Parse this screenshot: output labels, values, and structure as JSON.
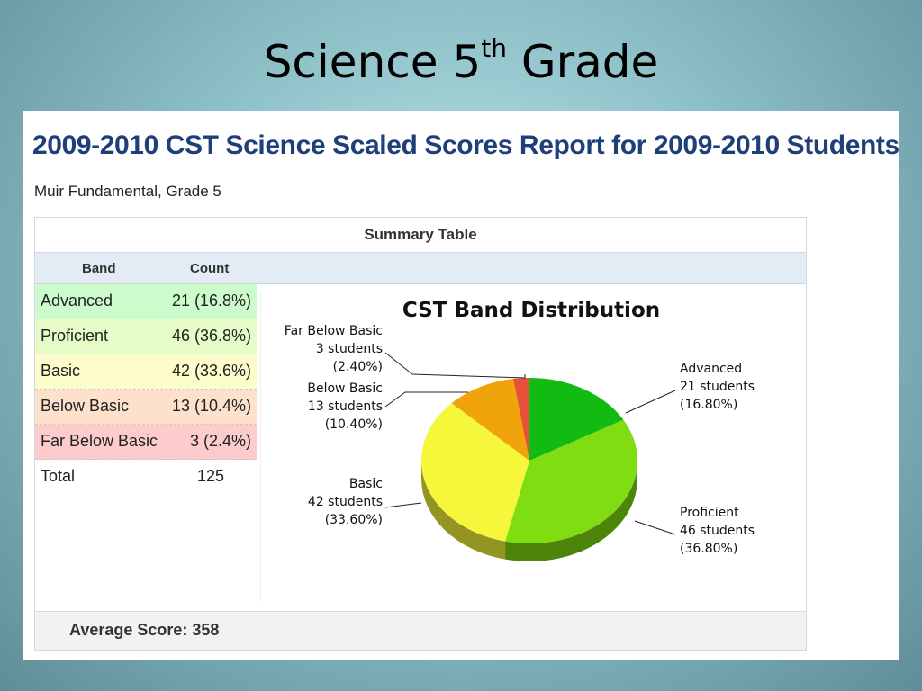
{
  "slide": {
    "title_main": "Science 5",
    "title_sup": "th",
    "title_end": " Grade"
  },
  "report": {
    "title": "2009-2010 CST Science Scaled Scores Report for 2009-2010 Students",
    "subtitle": "Muir Fundamental, Grade 5"
  },
  "table": {
    "heading": "Summary Table",
    "col_band": "Band",
    "col_count": "Count",
    "rows": [
      {
        "band": "Advanced",
        "count": "21 (16.8%)",
        "color": "#ccfccc"
      },
      {
        "band": "Proficient",
        "count": "46 (36.8%)",
        "color": "#e6fcc8"
      },
      {
        "band": "Basic",
        "count": "42 (33.6%)",
        "color": "#fdfccb"
      },
      {
        "band": "Below Basic",
        "count": "13 (10.4%)",
        "color": "#fde1cc"
      },
      {
        "band": "Far Below Basic",
        "count": "3 (2.4%)",
        "color": "#fccccc"
      },
      {
        "band": "Total",
        "count": "125",
        "color": "#ffffff"
      }
    ],
    "average": "Average Score: 358"
  },
  "chart_data": {
    "type": "pie",
    "title": "CST Band Distribution",
    "slices": [
      {
        "name": "Advanced",
        "value": 21,
        "percent": 16.8,
        "label_count": "21 students",
        "label_pct": "(16.80%)",
        "color": "#11bb11"
      },
      {
        "name": "Proficient",
        "value": 46,
        "percent": 36.8,
        "label_count": "46 students",
        "label_pct": "(36.80%)",
        "color": "#7fdd11"
      },
      {
        "name": "Basic",
        "value": 42,
        "percent": 33.6,
        "label_count": "42 students",
        "label_pct": "(33.60%)",
        "color": "#f6f63a"
      },
      {
        "name": "Below Basic",
        "value": 13,
        "percent": 10.4,
        "label_count": "13 students",
        "label_pct": "(10.40%)",
        "color": "#f0a30a"
      },
      {
        "name": "Far Below Basic",
        "value": 3,
        "percent": 2.4,
        "label_count": "3 students",
        "label_pct": "(2.40%)",
        "color": "#e8503a"
      }
    ],
    "style": "3d-pie"
  }
}
